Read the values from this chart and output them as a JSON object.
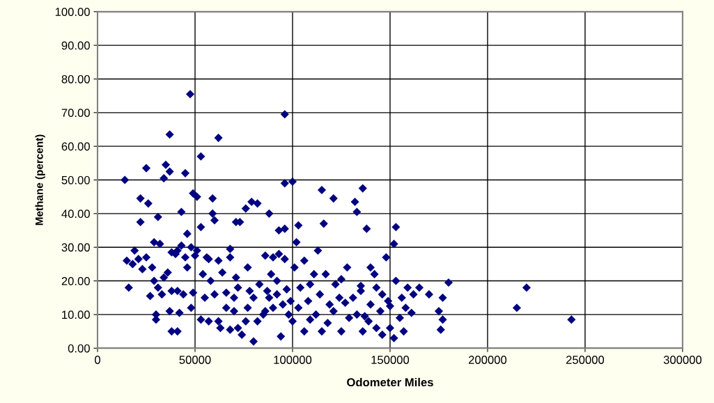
{
  "chart_data": {
    "type": "scatter",
    "xlabel": "Odometer Miles",
    "ylabel": "Methane (percent)",
    "xlim": [
      0,
      300000
    ],
    "xticks": [
      0,
      50000,
      100000,
      150000,
      200000,
      250000,
      300000
    ],
    "ylim": [
      0,
      100
    ],
    "yticks": [
      {
        "value": 0,
        "label": "0.00"
      },
      {
        "value": 10,
        "label": "10.00"
      },
      {
        "value": 20,
        "label": "20.00"
      },
      {
        "value": 30,
        "label": "30.00"
      },
      {
        "value": 40,
        "label": "40.00"
      },
      {
        "value": 50,
        "label": "50.00"
      },
      {
        "value": 60,
        "label": "60.00"
      },
      {
        "value": 70,
        "label": "70.00"
      },
      {
        "value": 80,
        "label": "80.00"
      },
      {
        "value": 90,
        "label": "90.00"
      },
      {
        "value": 100,
        "label": "100.00"
      }
    ],
    "grid": true,
    "marker": "diamond",
    "series": [
      {
        "color": "#000080",
        "x": [
          47500,
          96000,
          37000,
          62000,
          53000,
          35000,
          25000,
          37000,
          45000,
          34000,
          14000,
          96000,
          100000,
          115000,
          136000,
          49000,
          51000,
          22000,
          59000,
          79000,
          82000,
          121000,
          132000,
          26000,
          76000,
          133000,
          43000,
          59000,
          88000,
          31000,
          60000,
          71000,
          73000,
          22000,
          116000,
          103000,
          53000,
          153000,
          138000,
          96000,
          93000,
          46000,
          102000,
          152000,
          32000,
          29000,
          43000,
          48000,
          41000,
          51000,
          68000,
          19000,
          25000,
          40000,
          45000,
          50000,
          56000,
          62000,
          68000,
          86000,
          90000,
          93000,
          96000,
          113000,
          148000,
          15000,
          18000,
          21000,
          23000,
          28000,
          36000,
          46000,
          54000,
          64000,
          71000,
          77000,
          89000,
          101000,
          106000,
          117000,
          128000,
          140000,
          142000,
          153000,
          159000,
          165000,
          177000,
          180000,
          220000,
          215000,
          243000,
          16000,
          29000,
          31000,
          33000,
          27000,
          38000,
          44000,
          49000,
          55000,
          60000,
          66000,
          72000,
          78000,
          83000,
          87000,
          92000,
          97000,
          104000,
          109000,
          114000,
          119000,
          122000,
          124000,
          127000,
          131000,
          135000,
          140000,
          146000,
          150000,
          156000,
          162000,
          175000,
          177000,
          176000,
          30000,
          37000,
          42000,
          48000,
          53000,
          57000,
          63000,
          66000,
          70000,
          74000,
          76000,
          80000,
          82000,
          85000,
          90000,
          94000,
          98000,
          100000,
          103000,
          106000,
          109000,
          112000,
          115000,
          118000,
          121000,
          125000,
          129000,
          133000,
          136000,
          139000,
          143000,
          146000,
          150000,
          152000,
          155000,
          157000,
          161000,
          30000,
          38000,
          41000,
          62000,
          68000,
          72000,
          77000,
          88000,
          92000,
          95000,
          99000,
          108000,
          111000,
          125000,
          135000,
          145000,
          149000,
          158000,
          170000,
          137000,
          143000,
          86000,
          80000,
          70000,
          58000,
          34000,
          38000,
          41000,
          57000
        ],
        "values": [
          75.5,
          69.5,
          63.5,
          62.5,
          57,
          54.5,
          53.5,
          52.5,
          52,
          50.5,
          50,
          49,
          49.5,
          47,
          47.5,
          46,
          45,
          44.5,
          44.5,
          43.5,
          43,
          44.5,
          43.5,
          43,
          41.5,
          40.5,
          40.5,
          40,
          40,
          39,
          38,
          37.5,
          37.5,
          37.5,
          37,
          36.5,
          36,
          36,
          35.5,
          35.5,
          35,
          34,
          31.5,
          31,
          31,
          31.5,
          30.5,
          30,
          29,
          29,
          29.5,
          29,
          27,
          28,
          27,
          27.5,
          27,
          26,
          27,
          27.5,
          27,
          28,
          26.5,
          29,
          27,
          26,
          25,
          26.5,
          23.5,
          24,
          22.5,
          24,
          22,
          22.5,
          21,
          24,
          22,
          24,
          26,
          22,
          24,
          24,
          22,
          20,
          18,
          18,
          15,
          19.5,
          18,
          12,
          8.5,
          18,
          20,
          18,
          16,
          15.5,
          17,
          16,
          16.5,
          15,
          16,
          16.5,
          18,
          17,
          19,
          17,
          16,
          17.5,
          18,
          19,
          16,
          13,
          19,
          15,
          13.5,
          15,
          18.5,
          13,
          16,
          12.5,
          15,
          16,
          11,
          8.5,
          5.5,
          10,
          11,
          10.5,
          12,
          8.5,
          8,
          6,
          12,
          11,
          4,
          8,
          2,
          8,
          10,
          12,
          3.5,
          10,
          8,
          12,
          5,
          8.5,
          10,
          5,
          7.5,
          11,
          5,
          9,
          10,
          5,
          8,
          6,
          4,
          6,
          3,
          9,
          5,
          10.5,
          8.5,
          5,
          5,
          8,
          5.5,
          6,
          12,
          15,
          20,
          13,
          14,
          14,
          22,
          20.5,
          17,
          11,
          14,
          12,
          16,
          9.5,
          18,
          11,
          15,
          15,
          20,
          21,
          28.5,
          17,
          26.5
        ]
      }
    ]
  }
}
